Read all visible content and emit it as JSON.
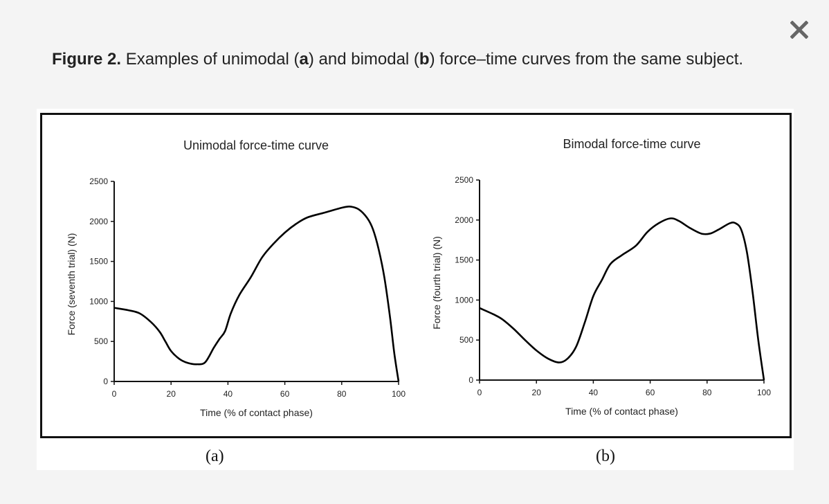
{
  "dialog": {
    "close_icon": "close-icon",
    "close_color": "#666666"
  },
  "caption": {
    "label": "Figure 2.",
    "text_1": " Examples of unimodal (",
    "a": "a",
    "text_2": ") and bimodal (",
    "b": "b",
    "text_3": ") force–time curves from the same subject."
  },
  "subfigure_labels": {
    "a": "(a)",
    "b": "(b)"
  },
  "chart_data": [
    {
      "type": "line",
      "title": "Unimodal force-time curve",
      "xlabel": "Time (% of contact phase)",
      "ylabel": "Force (seventh trial) (N)",
      "xlim": [
        0,
        100
      ],
      "ylim": [
        0,
        2500
      ],
      "xticks": [
        0,
        20,
        40,
        60,
        80,
        100
      ],
      "yticks": [
        0,
        500,
        1000,
        1500,
        2000,
        2500
      ],
      "grid": false,
      "legend": null,
      "series": [
        {
          "name": "Force (seventh trial)",
          "color": "#000000",
          "x": [
            0,
            5,
            9,
            13,
            16,
            18,
            20,
            23,
            26,
            29,
            32,
            35,
            37,
            39,
            41,
            44,
            48,
            52,
            56,
            60,
            64,
            68,
            74,
            80,
            83,
            86,
            89,
            91,
            93,
            95,
            97,
            98.5,
            100
          ],
          "y": [
            920,
            890,
            850,
            740,
            620,
            500,
            380,
            280,
            230,
            215,
            240,
            420,
            530,
            630,
            850,
            1080,
            1300,
            1550,
            1720,
            1860,
            1970,
            2050,
            2110,
            2170,
            2185,
            2150,
            2040,
            1900,
            1650,
            1300,
            800,
            350,
            0
          ]
        }
      ]
    },
    {
      "type": "line",
      "title": "Bimodal force-time curve",
      "xlabel": "Time (% of contact phase)",
      "ylabel": "Force (fourth trial) (N)",
      "xlim": [
        0,
        100
      ],
      "ylim": [
        0,
        2500
      ],
      "xticks": [
        0,
        20,
        40,
        60,
        80,
        100
      ],
      "yticks": [
        0,
        500,
        1000,
        1500,
        2000,
        2500
      ],
      "grid": false,
      "legend": null,
      "series": [
        {
          "name": "Force (fourth trial)",
          "color": "#000000",
          "x": [
            0,
            5,
            8,
            12,
            16,
            20,
            24,
            28,
            31,
            34,
            37,
            40,
            43,
            46,
            50,
            55,
            59,
            63,
            67,
            70,
            74,
            78,
            81,
            84,
            88,
            90,
            92,
            94,
            96,
            98,
            100
          ],
          "y": [
            900,
            820,
            760,
            640,
            500,
            370,
            270,
            220,
            270,
            420,
            720,
            1050,
            1250,
            1450,
            1560,
            1680,
            1850,
            1960,
            2020,
            1990,
            1900,
            1830,
            1830,
            1880,
            1960,
            1960,
            1880,
            1600,
            1100,
            500,
            0
          ]
        }
      ]
    }
  ]
}
